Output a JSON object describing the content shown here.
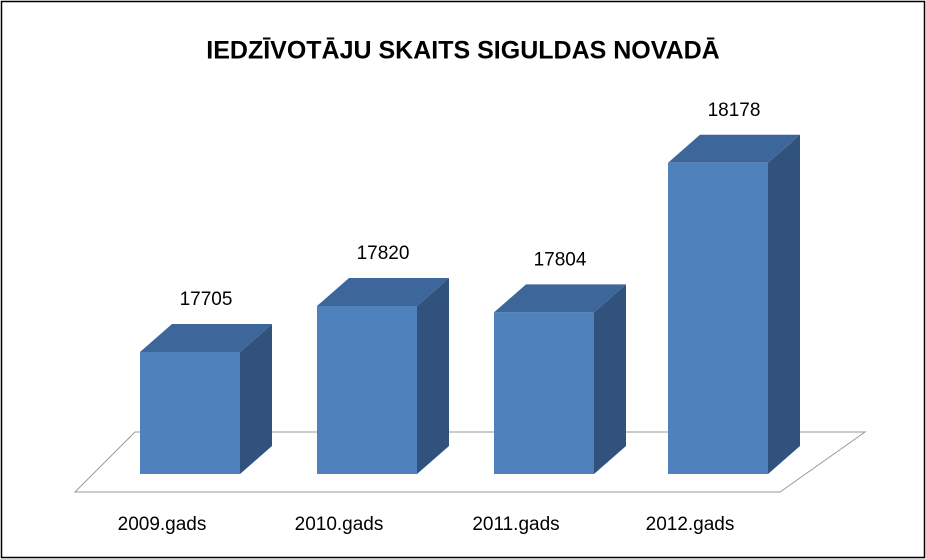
{
  "chart_data": {
    "type": "bar3d",
    "title": "IEDZĪVOTĀJU SKAITS SIGULDAS NOVADĀ",
    "categories": [
      "2009.gads",
      "2010.gads",
      "2011.gads",
      "2012.gads"
    ],
    "values": [
      17705,
      17820,
      17804,
      18178
    ],
    "color": "#4f81bd",
    "ylim": [
      17400,
      18200
    ]
  }
}
